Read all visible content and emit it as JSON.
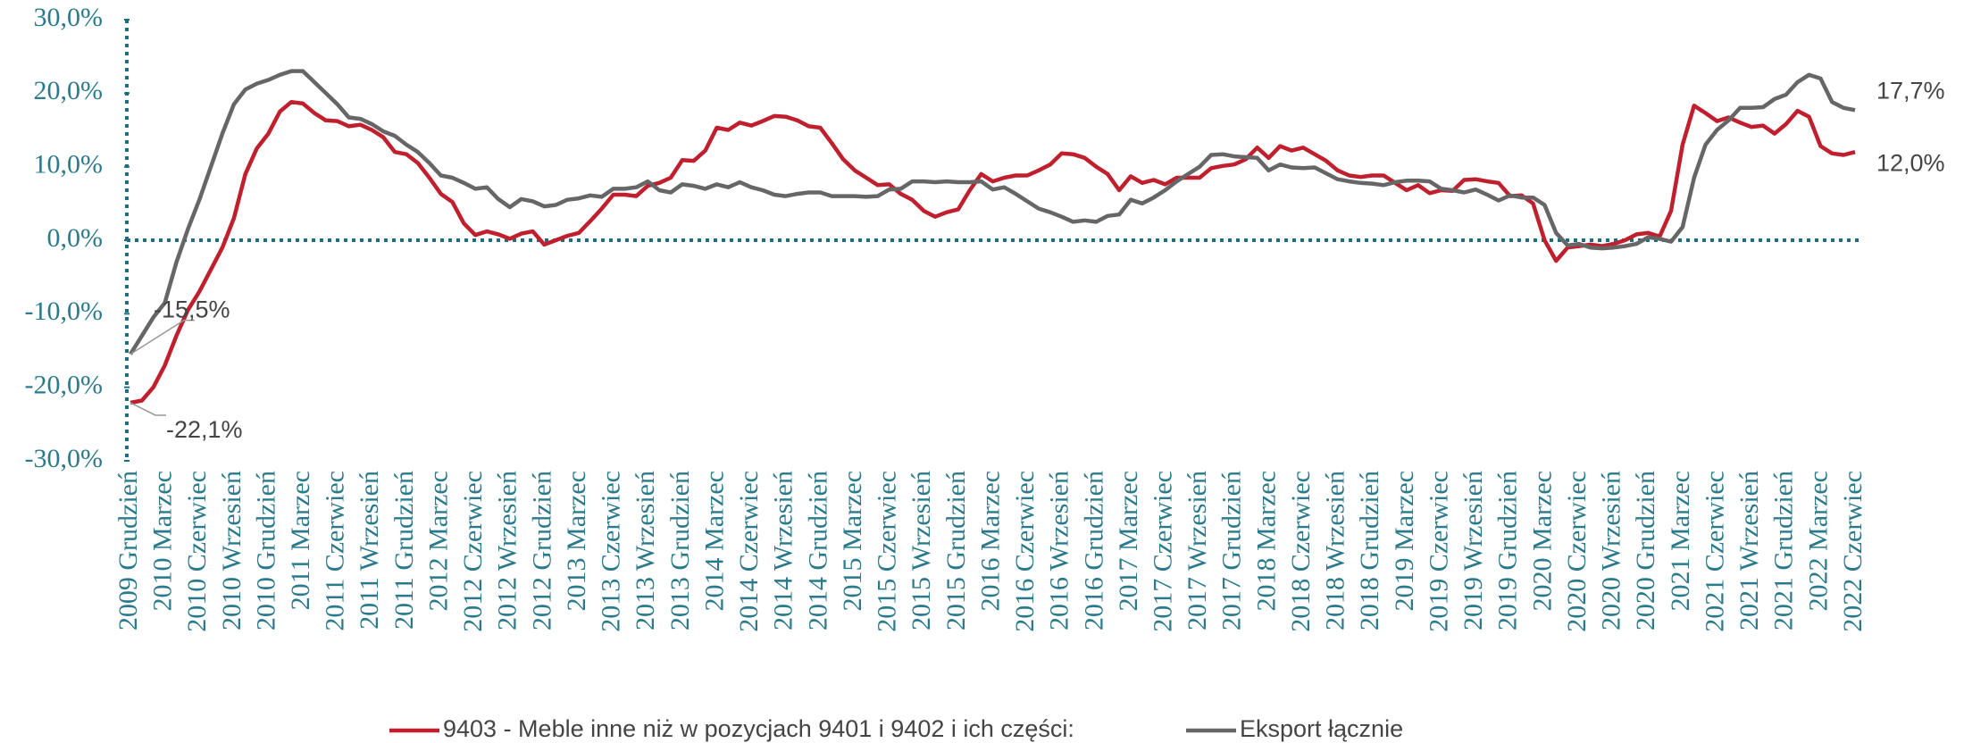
{
  "chart_data": {
    "type": "line",
    "categories": [
      "2009 Grudzień",
      null,
      null,
      "2010 Marzec",
      null,
      null,
      "2010 Czerwiec",
      null,
      null,
      "2010 Wrzesień",
      null,
      null,
      "2010 Grudzień",
      null,
      null,
      "2011 Marzec",
      null,
      null,
      "2011 Czerwiec",
      null,
      null,
      "2011 Wrzesień",
      null,
      null,
      "2011 Grudzień",
      null,
      null,
      "2012 Marzec",
      null,
      null,
      "2012 Czerwiec",
      null,
      null,
      "2012 Wrzesień",
      null,
      null,
      "2012 Grudzień",
      null,
      null,
      "2013 Marzec",
      null,
      null,
      "2013 Czerwiec",
      null,
      null,
      "2013 Wrzesień",
      null,
      null,
      "2013 Grudzień",
      null,
      null,
      "2014 Marzec",
      null,
      null,
      "2014 Czerwiec",
      null,
      null,
      "2014 Wrzesień",
      null,
      null,
      "2014 Grudzień",
      null,
      null,
      "2015 Marzec",
      null,
      null,
      "2015 Czerwiec",
      null,
      null,
      "2015 Wrzesień",
      null,
      null,
      "2015 Grudzień",
      null,
      null,
      "2016 Marzec",
      null,
      null,
      "2016 Czerwiec",
      null,
      null,
      "2016 Wrzesień",
      null,
      null,
      "2016 Grudzień",
      null,
      null,
      "2017 Marzec",
      null,
      null,
      "2017 Czerwiec",
      null,
      null,
      "2017 Wrzesień",
      null,
      null,
      "2017 Grudzień",
      null,
      null,
      "2018 Marzec",
      null,
      null,
      "2018 Czerwiec",
      null,
      null,
      "2018 Wrzesień",
      null,
      null,
      "2018 Grudzień",
      null,
      null,
      "2019 Marzec",
      null,
      null,
      "2019 Czerwiec",
      null,
      null,
      "2019 Wrzesień",
      null,
      null,
      "2019 Grudzień",
      null,
      null,
      "2020 Marzec",
      null,
      null,
      "2020 Czerwiec",
      null,
      null,
      "2020 Wrzesień",
      null,
      null,
      "2020 Grudzień",
      null,
      null,
      "2021 Marzec",
      null,
      null,
      "2021 Czerwiec",
      null,
      null,
      "2021 Wrzesień",
      null,
      null,
      "2021 Grudzień",
      null,
      null,
      "2022 Marzec",
      null,
      null,
      "2022 Czerwiec"
    ],
    "series": [
      {
        "name": "9403 - Meble inne niż w pozycjach 9401 i 9402 i ich części:",
        "color": "#c0202e",
        "values": [
          -22.1,
          -21.8,
          -20,
          -17,
          -13,
          -9.5,
          -7,
          -4,
          -1,
          3,
          9,
          12.5,
          14.5,
          17.5,
          18.8,
          18.6,
          17.3,
          16.3,
          16.2,
          15.5,
          15.7,
          15,
          14,
          12,
          11.7,
          10.5,
          8.5,
          6.3,
          5.2,
          2.3,
          0.7,
          1.2,
          0.8,
          0.2,
          0.9,
          1.2,
          -0.6,
          0,
          0.6,
          1,
          2.6,
          4.3,
          6.2,
          6.2,
          6,
          7.4,
          7.8,
          8.5,
          10.9,
          10.8,
          12.2,
          15.3,
          15,
          16,
          15.6,
          16.2,
          16.9,
          16.8,
          16.3,
          15.5,
          15.3,
          13.2,
          11,
          9.5,
          8.5,
          7.5,
          7.6,
          6.3,
          5.5,
          4,
          3.2,
          3.8,
          4.2,
          6.8,
          9,
          8,
          8.5,
          8.8,
          8.8,
          9.5,
          10.3,
          11.8,
          11.7,
          11.2,
          10,
          9,
          6.8,
          8.7,
          7.8,
          8.2,
          7.6,
          8.5,
          8.5,
          8.5,
          9.8,
          10.1,
          10.3,
          11,
          12.6,
          11.2,
          12.8,
          12.2,
          12.6,
          11.7,
          10.8,
          9.5,
          8.8,
          8.6,
          8.8,
          8.8,
          7.8,
          6.8,
          7.5,
          6.4,
          6.8,
          6.7,
          8.2,
          8.3,
          8,
          7.8,
          6,
          6.1,
          5,
          0,
          -2.8,
          -1,
          -0.8,
          -0.6,
          -0.8,
          -0.5,
          0,
          0.8,
          1,
          0.5,
          4,
          13,
          18.3,
          17.3,
          16.2,
          16.7,
          16,
          15.4,
          15.6,
          14.5,
          15.8,
          17.6,
          16.8,
          12.8,
          11.8,
          11.6,
          12.0
        ],
        "value_labels": [
          "-22,1%",
          null,
          null,
          null,
          null,
          null,
          null,
          null,
          null,
          null,
          null,
          null,
          null,
          null,
          null,
          null,
          null,
          null,
          null,
          null,
          null,
          null,
          null,
          null,
          null,
          null,
          null,
          null,
          null,
          null,
          null,
          null,
          null,
          null,
          null,
          null,
          null,
          null,
          null,
          null,
          null,
          null,
          null,
          null,
          null,
          null,
          null,
          null,
          null,
          null,
          null,
          null,
          null,
          null,
          null,
          null,
          null,
          null,
          null,
          null,
          null,
          null,
          null,
          null,
          null,
          null,
          null,
          null,
          null,
          null,
          null,
          null,
          null,
          null,
          null,
          null,
          null,
          null,
          null,
          null,
          null,
          null,
          null,
          null,
          null,
          null,
          null,
          null,
          null,
          null,
          null,
          null,
          null,
          null,
          null,
          null,
          null,
          null,
          null,
          null,
          null,
          null,
          null,
          null,
          null,
          null,
          null,
          null,
          null,
          null,
          null,
          null,
          null,
          null,
          null,
          null,
          null,
          null,
          null,
          null,
          null,
          null,
          null,
          null,
          null,
          null,
          null,
          null,
          null,
          null,
          null,
          null,
          null,
          null,
          null,
          null,
          null,
          null,
          null,
          null,
          null,
          null,
          null,
          null,
          null,
          null,
          null,
          null,
          null,
          null,
          "12,0%"
        ]
      },
      {
        "name": "Eksport łącznie",
        "color": "#666666",
        "values": [
          -15.5,
          -13,
          -10.5,
          -8.5,
          -3,
          1.5,
          5.5,
          10,
          14.5,
          18.5,
          20.5,
          21.3,
          21.8,
          22.5,
          23,
          23,
          21.5,
          20,
          18.5,
          16.7,
          16.5,
          15.8,
          14.8,
          14.2,
          13,
          12,
          10.5,
          8.8,
          8.5,
          7.8,
          7,
          7.2,
          5.6,
          4.5,
          5.6,
          5.3,
          4.6,
          4.8,
          5.5,
          5.7,
          6.1,
          5.9,
          7,
          7,
          7.2,
          8,
          6.8,
          6.5,
          7.6,
          7.4,
          7,
          7.6,
          7.2,
          7.9,
          7.2,
          6.8,
          6.2,
          6,
          6.3,
          6.5,
          6.5,
          6,
          6,
          6,
          5.9,
          6,
          6.9,
          7,
          8,
          8,
          7.9,
          8,
          7.9,
          7.9,
          8,
          6.9,
          7.2,
          6.3,
          5.3,
          4.3,
          3.8,
          3.2,
          2.5,
          2.7,
          2.5,
          3.3,
          3.5,
          5.5,
          5,
          5.8,
          6.8,
          8,
          9,
          10,
          11.6,
          11.7,
          11.4,
          11.3,
          11.2,
          9.5,
          10.3,
          9.9,
          9.8,
          9.9,
          9.1,
          8.3,
          8,
          7.8,
          7.7,
          7.5,
          7.9,
          8.1,
          8.1,
          8,
          7,
          6.8,
          6.5,
          6.9,
          6.2,
          5.4,
          6.1,
          5.8,
          5.8,
          4.8,
          1,
          -0.7,
          -0.5,
          -1,
          -1.1,
          -1,
          -0.8,
          -0.5,
          0.4,
          0.2,
          -0.2,
          1.8,
          8.5,
          13,
          15,
          16.3,
          18,
          18,
          18.1,
          19.2,
          19.8,
          21.5,
          22.5,
          22,
          18.8,
          18,
          17.7
        ],
        "value_labels": [
          "-15,5%",
          null,
          null,
          null,
          null,
          null,
          null,
          null,
          null,
          null,
          null,
          null,
          null,
          null,
          null,
          null,
          null,
          null,
          null,
          null,
          null,
          null,
          null,
          null,
          null,
          null,
          null,
          null,
          null,
          null,
          null,
          null,
          null,
          null,
          null,
          null,
          null,
          null,
          null,
          null,
          null,
          null,
          null,
          null,
          null,
          null,
          null,
          null,
          null,
          null,
          null,
          null,
          null,
          null,
          null,
          null,
          null,
          null,
          null,
          null,
          null,
          null,
          null,
          null,
          null,
          null,
          null,
          null,
          null,
          null,
          null,
          null,
          null,
          null,
          null,
          null,
          null,
          null,
          null,
          null,
          null,
          null,
          null,
          null,
          null,
          null,
          null,
          null,
          null,
          null,
          null,
          null,
          null,
          null,
          null,
          null,
          null,
          null,
          null,
          null,
          null,
          null,
          null,
          null,
          null,
          null,
          null,
          null,
          null,
          null,
          null,
          null,
          null,
          null,
          null,
          null,
          null,
          null,
          null,
          null,
          null,
          null,
          null,
          null,
          null,
          null,
          null,
          null,
          null,
          null,
          null,
          null,
          null,
          null,
          null,
          null,
          null,
          null,
          null,
          null,
          null,
          null,
          null,
          null,
          null,
          null,
          null,
          null,
          null,
          null,
          "17,7%"
        ]
      }
    ],
    "ylim": [
      -30,
      30
    ],
    "yticks": [
      {
        "value": -30,
        "label": "-30,0%"
      },
      {
        "value": -20,
        "label": "-20,0%"
      },
      {
        "value": -10,
        "label": "-10,0%"
      },
      {
        "value": 0,
        "label": "0,0%"
      },
      {
        "value": 10,
        "label": "10,0%"
      },
      {
        "value": 20,
        "label": "20,0%"
      },
      {
        "value": 30,
        "label": "30,0%"
      }
    ],
    "grid": false,
    "legend": "bottom"
  }
}
